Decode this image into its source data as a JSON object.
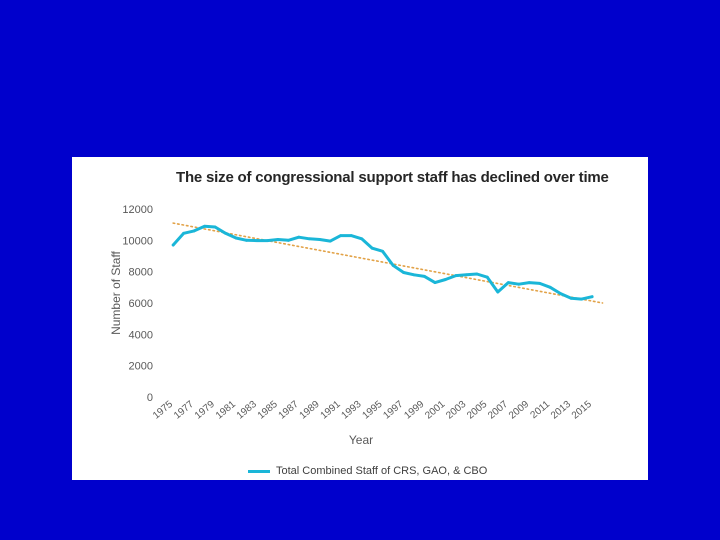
{
  "chart_data": {
    "type": "line",
    "title": "The size of congressional support staff has declined over time",
    "xlabel": "Year",
    "ylabel": "Number of Staff",
    "ylim": [
      0,
      12000
    ],
    "yticks": [
      "0",
      "2000",
      "4000",
      "6000",
      "8000",
      "10000",
      "12000"
    ],
    "xticks": [
      "1975",
      "1977",
      "1979",
      "1981",
      "1983",
      "1985",
      "1987",
      "1989",
      "1991",
      "1993",
      "1995",
      "1997",
      "1999",
      "2001",
      "2003",
      "2005",
      "2007",
      "2009",
      "2011",
      "2013",
      "2015"
    ],
    "grid": false,
    "legend_position": "bottom",
    "series": [
      {
        "name": "Total Combined Staff of CRS, GAO, & CBO",
        "color": "#1ab6d8",
        "x": [
          1975,
          1976,
          1977,
          1978,
          1979,
          1980,
          1981,
          1982,
          1983,
          1984,
          1985,
          1986,
          1987,
          1988,
          1989,
          1990,
          1991,
          1992,
          1993,
          1994,
          1995,
          1996,
          1997,
          1998,
          1999,
          2000,
          2001,
          2002,
          2003,
          2004,
          2005,
          2006,
          2007,
          2008,
          2009,
          2010,
          2011,
          2012,
          2013,
          2014,
          2015
        ],
        "values": [
          9700,
          10450,
          10600,
          10900,
          10850,
          10450,
          10150,
          10000,
          9980,
          9980,
          10050,
          10000,
          10200,
          10100,
          10050,
          9950,
          10300,
          10300,
          10100,
          9500,
          9300,
          8400,
          7950,
          7800,
          7700,
          7300,
          7500,
          7750,
          7800,
          7850,
          7650,
          6700,
          7300,
          7200,
          7300,
          7250,
          7000,
          6600,
          6300,
          6250,
          6400
        ]
      }
    ],
    "trendline": {
      "style": "dotted",
      "color": "#e2a247",
      "x": [
        1975,
        2016
      ],
      "values": [
        11100,
        6000
      ]
    }
  }
}
